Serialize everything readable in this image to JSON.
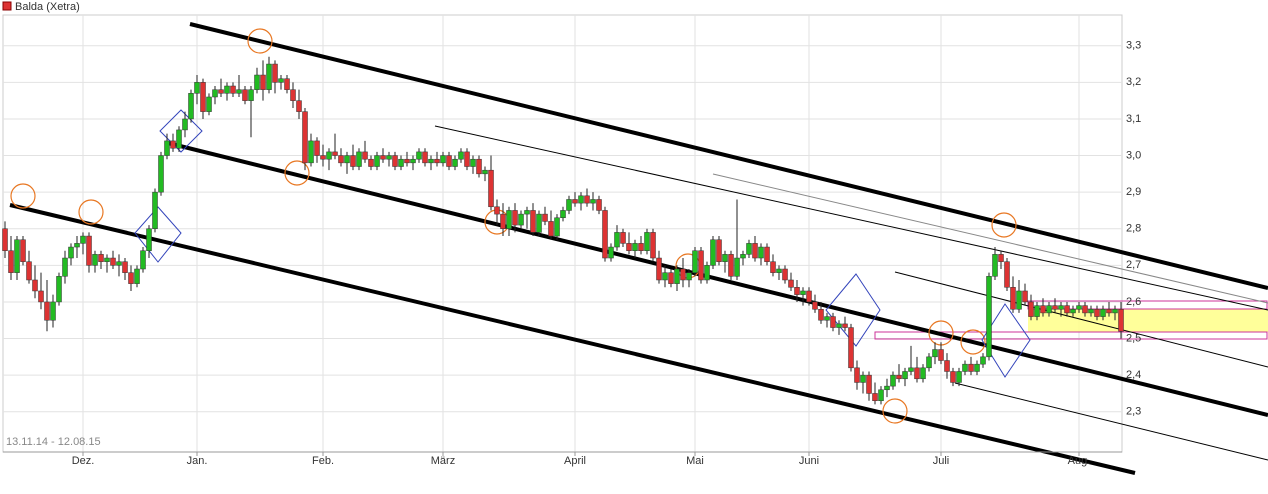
{
  "chart_data": {
    "type": "candlestick",
    "title": "Balda (Xetra)",
    "subtitle": "13.11.14 - 12.08.15",
    "up_color": "#22bb22",
    "down_color": "#dd3333",
    "grid": true,
    "ylim": [
      2.19,
      3.384
    ],
    "yticks": [
      {
        "value": 2.3,
        "label": "2,3"
      },
      {
        "value": 2.4,
        "label": "2,4"
      },
      {
        "value": 2.5,
        "label": "2,5"
      },
      {
        "value": 2.6,
        "label": "2,6"
      },
      {
        "value": 2.7,
        "label": "2,7"
      },
      {
        "value": 2.8,
        "label": "2,8"
      },
      {
        "value": 2.9,
        "label": "2,9"
      },
      {
        "value": 3.0,
        "label": "3,0"
      },
      {
        "value": 3.1,
        "label": "3,1"
      },
      {
        "value": 3.2,
        "label": "3,2"
      },
      {
        "value": 3.3,
        "label": "3,3"
      }
    ],
    "xticks": [
      {
        "value": 13,
        "label": "Dez."
      },
      {
        "value": 32,
        "label": "Jan."
      },
      {
        "value": 53,
        "label": "Feb."
      },
      {
        "value": 73,
        "label": "März"
      },
      {
        "value": 95,
        "label": "April"
      },
      {
        "value": 115,
        "label": "Mai"
      },
      {
        "value": 134,
        "label": "Juni"
      },
      {
        "value": 156,
        "label": "Juli"
      },
      {
        "value": 179,
        "label": "Aug."
      }
    ],
    "candles": [
      [
        2.8,
        2.82,
        2.72,
        2.74
      ],
      [
        2.74,
        2.78,
        2.66,
        2.68
      ],
      [
        2.68,
        2.78,
        2.66,
        2.77
      ],
      [
        2.77,
        2.78,
        2.7,
        2.71
      ],
      [
        2.71,
        2.74,
        2.65,
        2.66
      ],
      [
        2.66,
        2.7,
        2.61,
        2.63
      ],
      [
        2.63,
        2.68,
        2.58,
        2.6
      ],
      [
        2.6,
        2.66,
        2.52,
        2.55
      ],
      [
        2.55,
        2.62,
        2.53,
        2.6
      ],
      [
        2.6,
        2.68,
        2.59,
        2.67
      ],
      [
        2.67,
        2.74,
        2.65,
        2.72
      ],
      [
        2.72,
        2.76,
        2.7,
        2.75
      ],
      [
        2.75,
        2.78,
        2.72,
        2.76
      ],
      [
        2.76,
        2.79,
        2.73,
        2.78
      ],
      [
        2.78,
        2.79,
        2.68,
        2.7
      ],
      [
        2.7,
        2.74,
        2.68,
        2.73
      ],
      [
        2.73,
        2.74,
        2.69,
        2.71
      ],
      [
        2.71,
        2.73,
        2.68,
        2.72
      ],
      [
        2.72,
        2.74,
        2.69,
        2.7
      ],
      [
        2.7,
        2.73,
        2.67,
        2.71
      ],
      [
        2.71,
        2.72,
        2.66,
        2.68
      ],
      [
        2.68,
        2.7,
        2.63,
        2.65
      ],
      [
        2.65,
        2.7,
        2.64,
        2.69
      ],
      [
        2.69,
        2.75,
        2.68,
        2.74
      ],
      [
        2.74,
        2.81,
        2.72,
        2.8
      ],
      [
        2.8,
        2.91,
        2.79,
        2.9
      ],
      [
        2.9,
        3.01,
        2.89,
        3.0
      ],
      [
        3.0,
        3.06,
        2.99,
        3.04
      ],
      [
        3.04,
        3.06,
        3.01,
        3.02
      ],
      [
        3.02,
        3.08,
        3.01,
        3.07
      ],
      [
        3.07,
        3.12,
        3.05,
        3.1
      ],
      [
        3.1,
        3.18,
        3.09,
        3.17
      ],
      [
        3.17,
        3.22,
        3.14,
        3.2
      ],
      [
        3.2,
        3.21,
        3.1,
        3.12
      ],
      [
        3.12,
        3.17,
        3.11,
        3.16
      ],
      [
        3.16,
        3.19,
        3.14,
        3.18
      ],
      [
        3.18,
        3.21,
        3.16,
        3.17
      ],
      [
        3.17,
        3.2,
        3.15,
        3.19
      ],
      [
        3.19,
        3.2,
        3.16,
        3.17
      ],
      [
        3.17,
        3.22,
        3.16,
        3.18
      ],
      [
        3.18,
        3.19,
        3.14,
        3.15
      ],
      [
        3.15,
        3.19,
        3.05,
        3.18
      ],
      [
        3.18,
        3.24,
        3.17,
        3.22
      ],
      [
        3.22,
        3.26,
        3.15,
        3.18
      ],
      [
        3.18,
        3.27,
        3.17,
        3.25
      ],
      [
        3.25,
        3.26,
        3.17,
        3.2
      ],
      [
        3.2,
        3.22,
        3.18,
        3.21
      ],
      [
        3.21,
        3.22,
        3.17,
        3.18
      ],
      [
        3.18,
        3.2,
        3.13,
        3.15
      ],
      [
        3.15,
        3.18,
        3.1,
        3.12
      ],
      [
        3.12,
        3.13,
        2.96,
        2.98
      ],
      [
        2.98,
        3.06,
        2.97,
        3.04
      ],
      [
        3.04,
        3.05,
        2.98,
        3.0
      ],
      [
        3.0,
        3.03,
        2.97,
        2.99
      ],
      [
        2.99,
        3.02,
        2.96,
        3.01
      ],
      [
        3.01,
        3.06,
        2.99,
        3.0
      ],
      [
        3.0,
        3.02,
        2.97,
        2.98
      ],
      [
        2.98,
        3.01,
        2.95,
        3.0
      ],
      [
        3.0,
        3.03,
        2.96,
        2.97
      ],
      [
        2.97,
        3.02,
        2.96,
        3.01
      ],
      [
        3.01,
        3.04,
        2.98,
        2.99
      ],
      [
        2.99,
        3.0,
        2.96,
        2.97
      ],
      [
        2.97,
        3.01,
        2.96,
        3.0
      ],
      [
        3.0,
        3.02,
        2.98,
        2.99
      ],
      [
        2.99,
        3.01,
        2.97,
        3.0
      ],
      [
        3.0,
        3.01,
        2.96,
        2.97
      ],
      [
        2.97,
        3.0,
        2.96,
        2.99
      ],
      [
        2.99,
        3.01,
        2.97,
        2.98
      ],
      [
        2.98,
        3.0,
        2.96,
        2.99
      ],
      [
        2.99,
        3.02,
        2.98,
        3.01
      ],
      [
        3.01,
        3.02,
        2.97,
        2.98
      ],
      [
        2.98,
        3.0,
        2.96,
        2.99
      ],
      [
        2.99,
        3.01,
        2.97,
        2.98
      ],
      [
        2.98,
        3.01,
        2.97,
        3.0
      ],
      [
        3.0,
        3.01,
        2.96,
        2.97
      ],
      [
        2.97,
        3.0,
        2.96,
        2.99
      ],
      [
        2.99,
        3.02,
        2.98,
        3.01
      ],
      [
        3.01,
        3.02,
        2.96,
        2.97
      ],
      [
        2.97,
        3.0,
        2.95,
        2.99
      ],
      [
        2.99,
        3.0,
        2.94,
        2.95
      ],
      [
        2.95,
        2.97,
        2.93,
        2.96
      ],
      [
        2.96,
        3.0,
        2.85,
        2.86
      ],
      [
        2.86,
        2.88,
        2.81,
        2.84
      ],
      [
        2.84,
        2.87,
        2.78,
        2.8
      ],
      [
        2.8,
        2.86,
        2.78,
        2.85
      ],
      [
        2.85,
        2.87,
        2.79,
        2.81
      ],
      [
        2.81,
        2.85,
        2.8,
        2.84
      ],
      [
        2.84,
        2.86,
        2.8,
        2.85
      ],
      [
        2.85,
        2.87,
        2.78,
        2.79
      ],
      [
        2.79,
        2.85,
        2.78,
        2.84
      ],
      [
        2.84,
        2.86,
        2.81,
        2.82
      ],
      [
        2.82,
        2.85,
        2.77,
        2.78
      ],
      [
        2.78,
        2.84,
        2.77,
        2.83
      ],
      [
        2.83,
        2.86,
        2.82,
        2.85
      ],
      [
        2.85,
        2.89,
        2.84,
        2.88
      ],
      [
        2.88,
        2.9,
        2.86,
        2.87
      ],
      [
        2.87,
        2.9,
        2.85,
        2.89
      ],
      [
        2.89,
        2.91,
        2.86,
        2.87
      ],
      [
        2.87,
        2.9,
        2.85,
        2.88
      ],
      [
        2.88,
        2.89,
        2.84,
        2.85
      ],
      [
        2.85,
        2.86,
        2.71,
        2.72
      ],
      [
        2.72,
        2.76,
        2.71,
        2.75
      ],
      [
        2.75,
        2.81,
        2.74,
        2.79
      ],
      [
        2.79,
        2.8,
        2.75,
        2.76
      ],
      [
        2.76,
        2.79,
        2.73,
        2.74
      ],
      [
        2.74,
        2.77,
        2.72,
        2.76
      ],
      [
        2.76,
        2.78,
        2.73,
        2.74
      ],
      [
        2.74,
        2.8,
        2.73,
        2.79
      ],
      [
        2.79,
        2.8,
        2.71,
        2.72
      ],
      [
        2.72,
        2.74,
        2.65,
        2.66
      ],
      [
        2.66,
        2.7,
        2.64,
        2.68
      ],
      [
        2.68,
        2.69,
        2.64,
        2.65
      ],
      [
        2.65,
        2.7,
        2.63,
        2.69
      ],
      [
        2.69,
        2.72,
        2.64,
        2.66
      ],
      [
        2.66,
        2.69,
        2.64,
        2.68
      ],
      [
        2.68,
        2.75,
        2.67,
        2.74
      ],
      [
        2.74,
        2.75,
        2.65,
        2.66
      ],
      [
        2.66,
        2.71,
        2.65,
        2.7
      ],
      [
        2.7,
        2.78,
        2.69,
        2.77
      ],
      [
        2.77,
        2.78,
        2.7,
        2.71
      ],
      [
        2.71,
        2.74,
        2.68,
        2.73
      ],
      [
        2.73,
        2.74,
        2.66,
        2.67
      ],
      [
        2.67,
        2.88,
        2.66,
        2.72
      ],
      [
        2.72,
        2.74,
        2.7,
        2.73
      ],
      [
        2.73,
        2.77,
        2.72,
        2.76
      ],
      [
        2.76,
        2.78,
        2.71,
        2.72
      ],
      [
        2.72,
        2.76,
        2.7,
        2.75
      ],
      [
        2.75,
        2.76,
        2.7,
        2.71
      ],
      [
        2.71,
        2.73,
        2.67,
        2.68
      ],
      [
        2.68,
        2.7,
        2.66,
        2.69
      ],
      [
        2.69,
        2.7,
        2.65,
        2.66
      ],
      [
        2.66,
        2.68,
        2.63,
        2.64
      ],
      [
        2.64,
        2.66,
        2.6,
        2.62
      ],
      [
        2.62,
        2.64,
        2.59,
        2.63
      ],
      [
        2.63,
        2.64,
        2.59,
        2.6
      ],
      [
        2.6,
        2.62,
        2.57,
        2.58
      ],
      [
        2.58,
        2.6,
        2.54,
        2.55
      ],
      [
        2.55,
        2.57,
        2.53,
        2.56
      ],
      [
        2.56,
        2.57,
        2.52,
        2.53
      ],
      [
        2.53,
        2.55,
        2.51,
        2.54
      ],
      [
        2.54,
        2.56,
        2.52,
        2.53
      ],
      [
        2.53,
        2.54,
        2.41,
        2.42
      ],
      [
        2.42,
        2.44,
        2.36,
        2.38
      ],
      [
        2.38,
        2.41,
        2.35,
        2.4
      ],
      [
        2.4,
        2.41,
        2.33,
        2.35
      ],
      [
        2.35,
        2.38,
        2.32,
        2.33
      ],
      [
        2.33,
        2.37,
        2.32,
        2.36
      ],
      [
        2.36,
        2.39,
        2.34,
        2.37
      ],
      [
        2.37,
        2.41,
        2.36,
        2.4
      ],
      [
        2.4,
        2.43,
        2.38,
        2.39
      ],
      [
        2.39,
        2.42,
        2.37,
        2.41
      ],
      [
        2.41,
        2.48,
        2.4,
        2.42
      ],
      [
        2.42,
        2.45,
        2.38,
        2.39
      ],
      [
        2.39,
        2.43,
        2.38,
        2.42
      ],
      [
        2.42,
        2.46,
        2.41,
        2.45
      ],
      [
        2.45,
        2.49,
        2.43,
        2.47
      ],
      [
        2.47,
        2.49,
        2.43,
        2.44
      ],
      [
        2.44,
        2.46,
        2.39,
        2.41
      ],
      [
        2.41,
        2.42,
        2.37,
        2.38
      ],
      [
        2.38,
        2.42,
        2.37,
        2.41
      ],
      [
        2.41,
        2.44,
        2.4,
        2.43
      ],
      [
        2.43,
        2.45,
        2.4,
        2.41
      ],
      [
        2.41,
        2.44,
        2.4,
        2.43
      ],
      [
        2.43,
        2.46,
        2.42,
        2.45
      ],
      [
        2.45,
        2.68,
        2.44,
        2.67
      ],
      [
        2.67,
        2.75,
        2.66,
        2.73
      ],
      [
        2.73,
        2.74,
        2.69,
        2.71
      ],
      [
        2.71,
        2.72,
        2.63,
        2.64
      ],
      [
        2.64,
        2.67,
        2.57,
        2.58
      ],
      [
        2.58,
        2.66,
        2.57,
        2.63
      ],
      [
        2.63,
        2.65,
        2.59,
        2.6
      ],
      [
        2.6,
        2.62,
        2.55,
        2.56
      ],
      [
        2.56,
        2.6,
        2.55,
        2.59
      ],
      [
        2.59,
        2.61,
        2.56,
        2.57
      ],
      [
        2.57,
        2.6,
        2.56,
        2.59
      ],
      [
        2.59,
        2.61,
        2.57,
        2.58
      ],
      [
        2.58,
        2.6,
        2.56,
        2.59
      ],
      [
        2.59,
        2.6,
        2.56,
        2.57
      ],
      [
        2.57,
        2.59,
        2.56,
        2.58
      ],
      [
        2.58,
        2.6,
        2.57,
        2.59
      ],
      [
        2.59,
        2.6,
        2.56,
        2.57
      ],
      [
        2.57,
        2.59,
        2.56,
        2.58
      ],
      [
        2.58,
        2.59,
        2.55,
        2.56
      ],
      [
        2.56,
        2.59,
        2.55,
        2.58
      ],
      [
        2.58,
        2.6,
        2.56,
        2.57
      ],
      [
        2.57,
        2.59,
        2.55,
        2.58
      ],
      [
        2.58,
        2.6,
        2.5,
        2.52
      ]
    ]
  }
}
